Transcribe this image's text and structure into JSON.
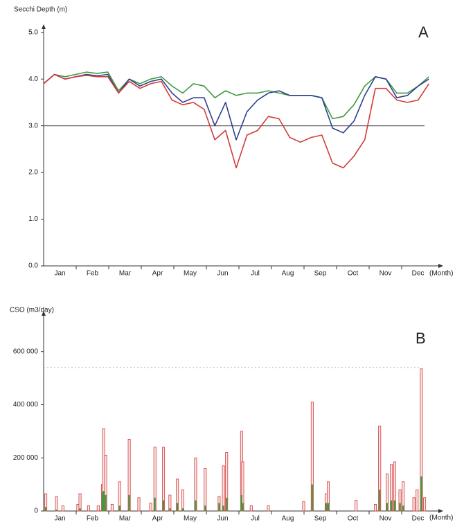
{
  "chart_data": [
    {
      "type": "line",
      "ylabel": "Secchi Depth (m)",
      "xlabel": "(Month)",
      "annotation": "A",
      "categories": [
        "Jan",
        "Feb",
        "Mar",
        "Apr",
        "May",
        "Jun",
        "Jul",
        "Aug",
        "Sep",
        "Oct",
        "Nov",
        "Dec"
      ],
      "xlim": [
        0,
        365
      ],
      "ylim": [
        0,
        5.1
      ],
      "yticks": [
        {
          "value": 0,
          "label": "0.0"
        },
        {
          "value": 1,
          "label": "1.0"
        },
        {
          "value": 2,
          "label": "2.0"
        },
        {
          "value": 3,
          "label": "3.0"
        },
        {
          "value": 4,
          "label": "4.0"
        },
        {
          "value": 5,
          "label": "5.0"
        }
      ],
      "hline": 3,
      "x": [
        0,
        10,
        20,
        30,
        40,
        50,
        60,
        70,
        80,
        90,
        100,
        110,
        120,
        130,
        140,
        150,
        160,
        170,
        180,
        190,
        200,
        210,
        220,
        230,
        240,
        250,
        260,
        270,
        280,
        290,
        300,
        310,
        320,
        330,
        340,
        350,
        360
      ],
      "series": [
        {
          "color": "#3e9a3e",
          "values": [
            3.9,
            4.1,
            4.05,
            4.1,
            4.15,
            4.12,
            4.15,
            3.75,
            4.0,
            3.9,
            4.0,
            4.05,
            3.85,
            3.7,
            3.9,
            3.85,
            3.6,
            3.75,
            3.65,
            3.7,
            3.7,
            3.75,
            3.7,
            3.65,
            3.65,
            3.65,
            3.6,
            3.15,
            3.2,
            3.45,
            3.85,
            4.05,
            4.0,
            3.7,
            3.7,
            3.85,
            4.05
          ]
        },
        {
          "color": "#2e3f8f",
          "values": [
            3.9,
            4.1,
            4.0,
            4.05,
            4.1,
            4.07,
            4.1,
            3.7,
            4.0,
            3.85,
            3.95,
            4.0,
            3.7,
            3.5,
            3.6,
            3.6,
            3.0,
            3.5,
            2.7,
            3.3,
            3.55,
            3.7,
            3.75,
            3.65,
            3.65,
            3.65,
            3.6,
            2.95,
            2.85,
            3.1,
            3.65,
            4.05,
            4.0,
            3.6,
            3.65,
            3.85,
            4.0
          ]
        },
        {
          "color": "#d23a3a",
          "values": [
            3.9,
            4.1,
            4.0,
            4.05,
            4.08,
            4.05,
            4.05,
            3.7,
            3.95,
            3.8,
            3.9,
            3.95,
            3.55,
            3.45,
            3.5,
            3.35,
            2.7,
            2.9,
            2.1,
            2.8,
            2.9,
            3.2,
            3.15,
            2.75,
            2.65,
            2.75,
            2.8,
            2.2,
            2.1,
            2.35,
            2.7,
            3.8,
            3.8,
            3.55,
            3.5,
            3.55,
            3.9
          ]
        }
      ]
    },
    {
      "type": "bar",
      "ylabel": "CSO (m3/day)",
      "xlabel": "(Month)",
      "annotation": "B",
      "categories": [
        "Jan",
        "Feb",
        "Mar",
        "Apr",
        "May",
        "Jun",
        "Jul",
        "Aug",
        "Sep",
        "Oct",
        "Nov",
        "Dec"
      ],
      "xlim": [
        0,
        365
      ],
      "ylim": [
        0,
        740000
      ],
      "yticks": [
        0,
        {
          "value": 200000,
          "label": "200 000"
        },
        {
          "value": 400000,
          "label": "400 000"
        },
        {
          "value": 600000,
          "label": "600 000"
        }
      ],
      "hline": 540000,
      "x": [
        2,
        12,
        18,
        32,
        34,
        42,
        51,
        55,
        56,
        58,
        64,
        71,
        80,
        89,
        100,
        104,
        112,
        118,
        125,
        130,
        142,
        151,
        164,
        168,
        171,
        185,
        186,
        194,
        210,
        243,
        251,
        264,
        266,
        292,
        310,
        314,
        321,
        325,
        328,
        333,
        336,
        346,
        349,
        353,
        356
      ],
      "series": [
        {
          "color": "#d23a3a",
          "values": [
            65000,
            55000,
            20000,
            25000,
            65000,
            20000,
            20000,
            100000,
            310000,
            210000,
            25000,
            110000,
            270000,
            50000,
            30000,
            240000,
            240000,
            60000,
            120000,
            80000,
            200000,
            160000,
            55000,
            170000,
            220000,
            300000,
            185000,
            20000,
            20000,
            35000,
            410000,
            65000,
            110000,
            40000,
            25000,
            320000,
            140000,
            175000,
            185000,
            80000,
            110000,
            50000,
            80000,
            535000,
            50000
          ]
        },
        {
          "color": "#3e9a3e",
          "values": [
            15000,
            5000,
            null,
            null,
            10000,
            null,
            null,
            70000,
            75000,
            60000,
            null,
            20000,
            60000,
            null,
            null,
            50000,
            40000,
            10000,
            30000,
            10000,
            40000,
            20000,
            30000,
            20000,
            50000,
            60000,
            30000,
            null,
            null,
            null,
            100000,
            30000,
            30000,
            null,
            null,
            80000,
            30000,
            40000,
            40000,
            30000,
            20000,
            null,
            null,
            130000,
            null
          ]
        }
      ]
    }
  ]
}
